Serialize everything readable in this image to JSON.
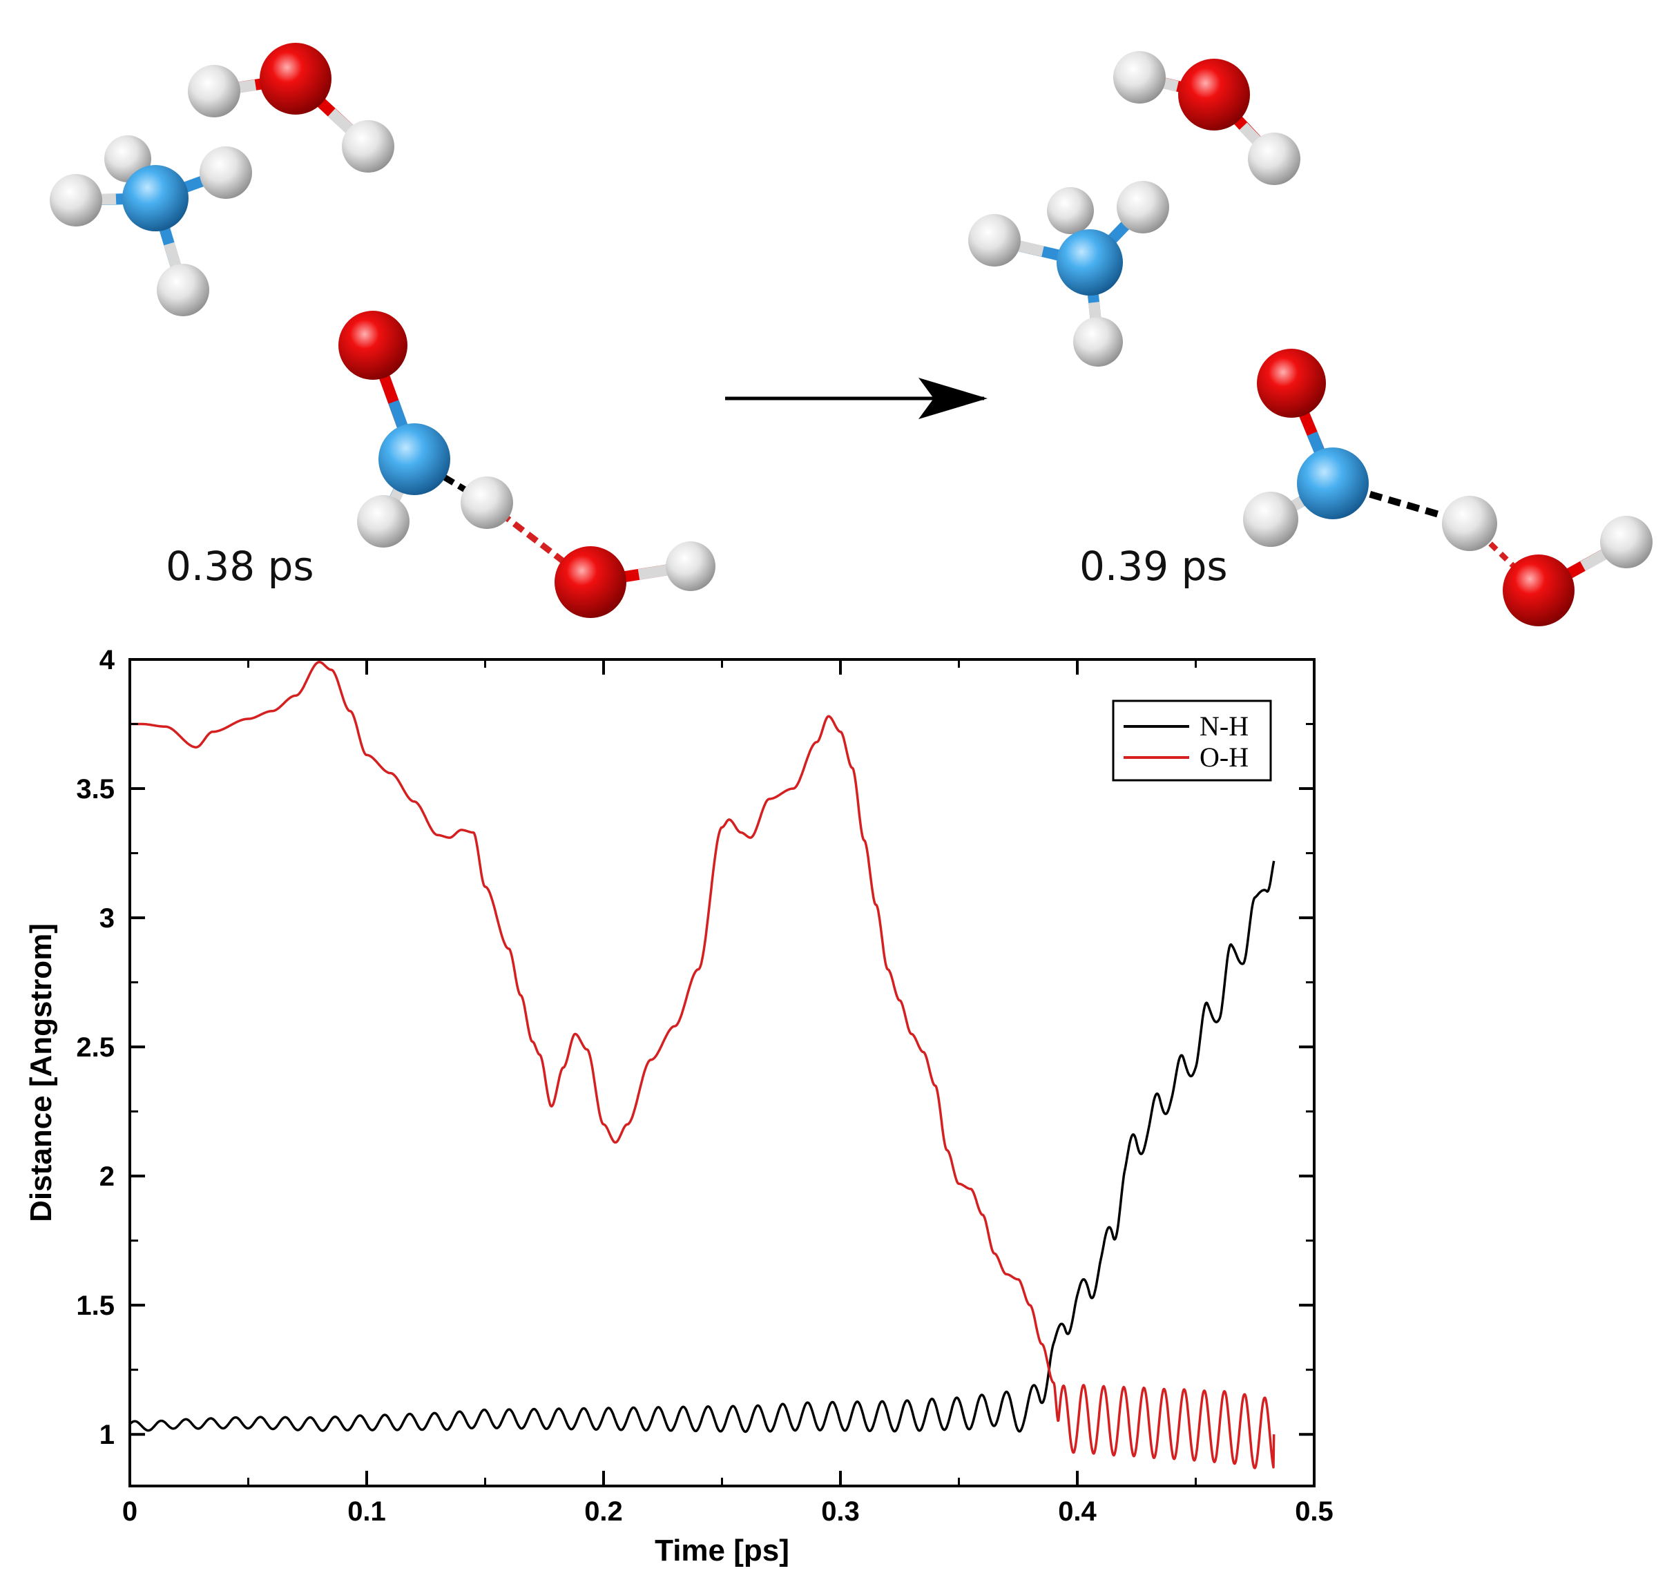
{
  "snapshots": [
    {
      "label": "0.38 ps"
    },
    {
      "label": "0.39 ps"
    }
  ],
  "colors": {
    "nitrogen": "#2e8fd6",
    "oxygen": "#e00000",
    "hydrogen": "#d8d8d8",
    "nh_line": "#000000",
    "oh_line": "#d42020"
  },
  "chart_data": {
    "type": "line",
    "xlabel": "Time [ps]",
    "ylabel": "Distance [Angstrom]",
    "xlim": [
      0,
      0.5
    ],
    "ylim": [
      0.8,
      4
    ],
    "xticks": [
      "0",
      "0.1",
      "0.2",
      "0.3",
      "0.4",
      "0.5"
    ],
    "yticks": [
      "1",
      "1.5",
      "2",
      "2.5",
      "3",
      "3.5",
      "4"
    ],
    "grid": false,
    "legend_position": "top-right",
    "series": [
      {
        "name": "N-H",
        "color": "#000000",
        "points": [
          [
            0,
            1.04
          ],
          [
            0.005,
            1.03
          ],
          [
            0.02,
            1.04
          ],
          [
            0.05,
            1.045
          ],
          [
            0.08,
            1.04
          ],
          [
            0.1,
            1.045
          ],
          [
            0.13,
            1.05
          ],
          [
            0.15,
            1.06
          ],
          [
            0.17,
            1.06
          ],
          [
            0.2,
            1.06
          ],
          [
            0.23,
            1.06
          ],
          [
            0.26,
            1.06
          ],
          [
            0.29,
            1.07
          ],
          [
            0.32,
            1.07
          ],
          [
            0.35,
            1.08
          ],
          [
            0.37,
            1.1
          ],
          [
            0.378,
            1.07
          ],
          [
            0.384,
            1.17
          ],
          [
            0.39,
            1.3
          ],
          [
            0.395,
            1.45
          ],
          [
            0.4,
            1.5
          ],
          [
            0.405,
            1.58
          ],
          [
            0.41,
            1.66
          ],
          [
            0.415,
            1.78
          ],
          [
            0.42,
            2.02
          ],
          [
            0.425,
            2.12
          ],
          [
            0.43,
            2.2
          ],
          [
            0.435,
            2.26
          ],
          [
            0.44,
            2.35
          ],
          [
            0.445,
            2.4
          ],
          [
            0.45,
            2.48
          ],
          [
            0.455,
            2.6
          ],
          [
            0.46,
            2.68
          ],
          [
            0.465,
            2.82
          ],
          [
            0.47,
            2.9
          ],
          [
            0.475,
            3.0
          ],
          [
            0.48,
            3.18
          ],
          [
            0.483,
            3.22
          ]
        ],
        "oscillation": {
          "period_ps": 0.0105,
          "amplitude_start": 0.015,
          "amplitude_end": 0.08,
          "onset_ps": 0.0,
          "end_ps": 0.483
        }
      },
      {
        "name": "O-H",
        "color": "#d42020",
        "points": [
          [
            0,
            3.75
          ],
          [
            0.005,
            3.75
          ],
          [
            0.015,
            3.74
          ],
          [
            0.028,
            3.66
          ],
          [
            0.035,
            3.72
          ],
          [
            0.05,
            3.77
          ],
          [
            0.06,
            3.8
          ],
          [
            0.07,
            3.86
          ],
          [
            0.08,
            3.99
          ],
          [
            0.085,
            3.96
          ],
          [
            0.093,
            3.8
          ],
          [
            0.1,
            3.63
          ],
          [
            0.11,
            3.56
          ],
          [
            0.12,
            3.45
          ],
          [
            0.13,
            3.32
          ],
          [
            0.135,
            3.31
          ],
          [
            0.14,
            3.34
          ],
          [
            0.145,
            3.33
          ],
          [
            0.15,
            3.12
          ],
          [
            0.16,
            2.88
          ],
          [
            0.165,
            2.7
          ],
          [
            0.17,
            2.52
          ],
          [
            0.173,
            2.47
          ],
          [
            0.178,
            2.27
          ],
          [
            0.183,
            2.42
          ],
          [
            0.188,
            2.55
          ],
          [
            0.193,
            2.49
          ],
          [
            0.2,
            2.2
          ],
          [
            0.205,
            2.13
          ],
          [
            0.21,
            2.2
          ],
          [
            0.22,
            2.45
          ],
          [
            0.23,
            2.58
          ],
          [
            0.24,
            2.8
          ],
          [
            0.25,
            3.35
          ],
          [
            0.253,
            3.38
          ],
          [
            0.258,
            3.33
          ],
          [
            0.262,
            3.31
          ],
          [
            0.27,
            3.46
          ],
          [
            0.28,
            3.5
          ],
          [
            0.29,
            3.68
          ],
          [
            0.295,
            3.78
          ],
          [
            0.3,
            3.72
          ],
          [
            0.305,
            3.58
          ],
          [
            0.31,
            3.3
          ],
          [
            0.315,
            3.05
          ],
          [
            0.32,
            2.8
          ],
          [
            0.325,
            2.68
          ],
          [
            0.33,
            2.55
          ],
          [
            0.335,
            2.48
          ],
          [
            0.34,
            2.35
          ],
          [
            0.345,
            2.1
          ],
          [
            0.35,
            1.97
          ],
          [
            0.355,
            1.95
          ],
          [
            0.36,
            1.85
          ],
          [
            0.365,
            1.7
          ],
          [
            0.37,
            1.62
          ],
          [
            0.375,
            1.6
          ],
          [
            0.38,
            1.5
          ],
          [
            0.385,
            1.35
          ],
          [
            0.39,
            1.2
          ],
          [
            0.392,
            1.05
          ],
          [
            0.395,
            1.06
          ],
          [
            0.4,
            1.06
          ],
          [
            0.42,
            1.05
          ],
          [
            0.44,
            1.04
          ],
          [
            0.46,
            1.03
          ],
          [
            0.483,
            1.0
          ]
        ],
        "oscillation": {
          "period_ps": 0.0085,
          "amplitude_start": 0.13,
          "amplitude_end": 0.14,
          "onset_ps": 0.392,
          "end_ps": 0.483
        }
      }
    ]
  }
}
